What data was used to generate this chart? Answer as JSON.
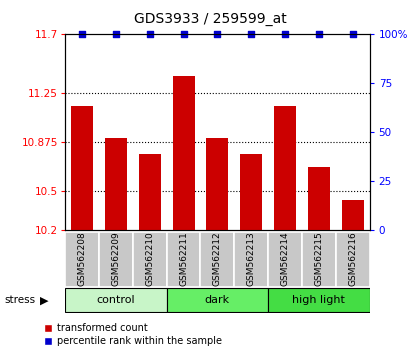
{
  "title": "GDS3933 / 259599_at",
  "samples": [
    "GSM562208",
    "GSM562209",
    "GSM562210",
    "GSM562211",
    "GSM562212",
    "GSM562213",
    "GSM562214",
    "GSM562215",
    "GSM562216"
  ],
  "bar_values": [
    11.15,
    10.9,
    10.78,
    11.38,
    10.9,
    10.78,
    11.15,
    10.68,
    10.43
  ],
  "percentile_values": [
    100,
    100,
    100,
    100,
    100,
    100,
    100,
    100,
    100
  ],
  "ylim": [
    10.2,
    11.7
  ],
  "yticks_left": [
    10.2,
    10.5,
    10.875,
    11.25,
    11.7
  ],
  "ytick_labels_left": [
    "10.2",
    "10.5",
    "10.875",
    "11.25",
    "11.7"
  ],
  "yticks_right": [
    0,
    25,
    50,
    75,
    100
  ],
  "ytick_labels_right": [
    "0",
    "25",
    "50",
    "75",
    "100%"
  ],
  "bar_color": "#cc0000",
  "dot_color": "#0000cc",
  "groups": [
    {
      "label": "control",
      "start": 0,
      "end": 3,
      "color": "#c8f5c8"
    },
    {
      "label": "dark",
      "start": 3,
      "end": 6,
      "color": "#66ee66"
    },
    {
      "label": "high light",
      "start": 6,
      "end": 9,
      "color": "#44dd44"
    }
  ],
  "stress_label": "stress",
  "legend_red": "transformed count",
  "legend_blue": "percentile rank within the sample",
  "background_color": "#ffffff",
  "plot_bg_color": "#ffffff",
  "sample_bg_color": "#c8c8c8",
  "title_fontsize": 10,
  "tick_fontsize": 7.5,
  "sample_fontsize": 6.5,
  "group_fontsize": 8,
  "legend_fontsize": 7
}
